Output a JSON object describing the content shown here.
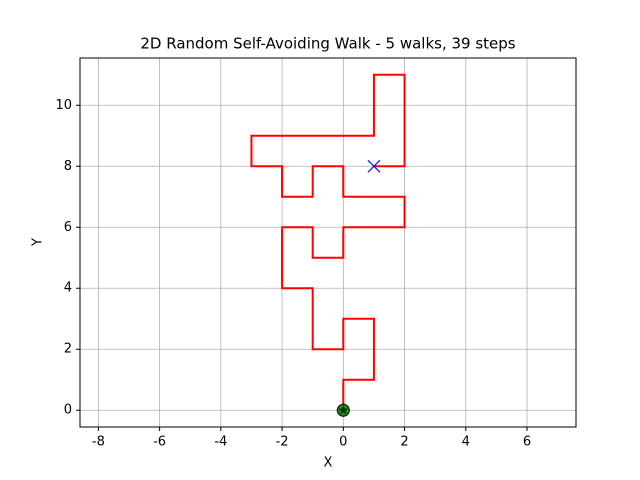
{
  "chart_data": {
    "type": "walk",
    "title": "2D Random Self-Avoiding Walk - 5 walks, 39 steps",
    "x_label": "X",
    "y_label": "Y",
    "path": {
      "color": "#ff0000",
      "x": [
        0,
        0,
        1,
        1,
        0,
        0,
        -1,
        -1,
        -2,
        -2,
        -1,
        -1,
        0,
        0,
        2,
        2,
        0,
        0,
        -1,
        -1,
        -2,
        -2,
        -3,
        -3,
        1,
        1,
        2,
        2,
        1
      ],
      "y": [
        0,
        1,
        1,
        3,
        3,
        2,
        2,
        4,
        4,
        6,
        6,
        5,
        5,
        6,
        6,
        7,
        7,
        8,
        8,
        7,
        7,
        8,
        8,
        9,
        9,
        11,
        11,
        8,
        8
      ]
    },
    "start": {
      "x": 0,
      "y": 0,
      "color": "#228b22"
    },
    "end": {
      "x": 1,
      "y": 8,
      "color": "#0000ff"
    },
    "xlim": [
      -8.6,
      7.6
    ],
    "ylim": [
      -0.55,
      11.55
    ],
    "xticks": [
      -8,
      -6,
      -4,
      -2,
      0,
      2,
      4,
      6
    ],
    "yticks": [
      0,
      2,
      4,
      6,
      8,
      10
    ],
    "grid": true
  }
}
